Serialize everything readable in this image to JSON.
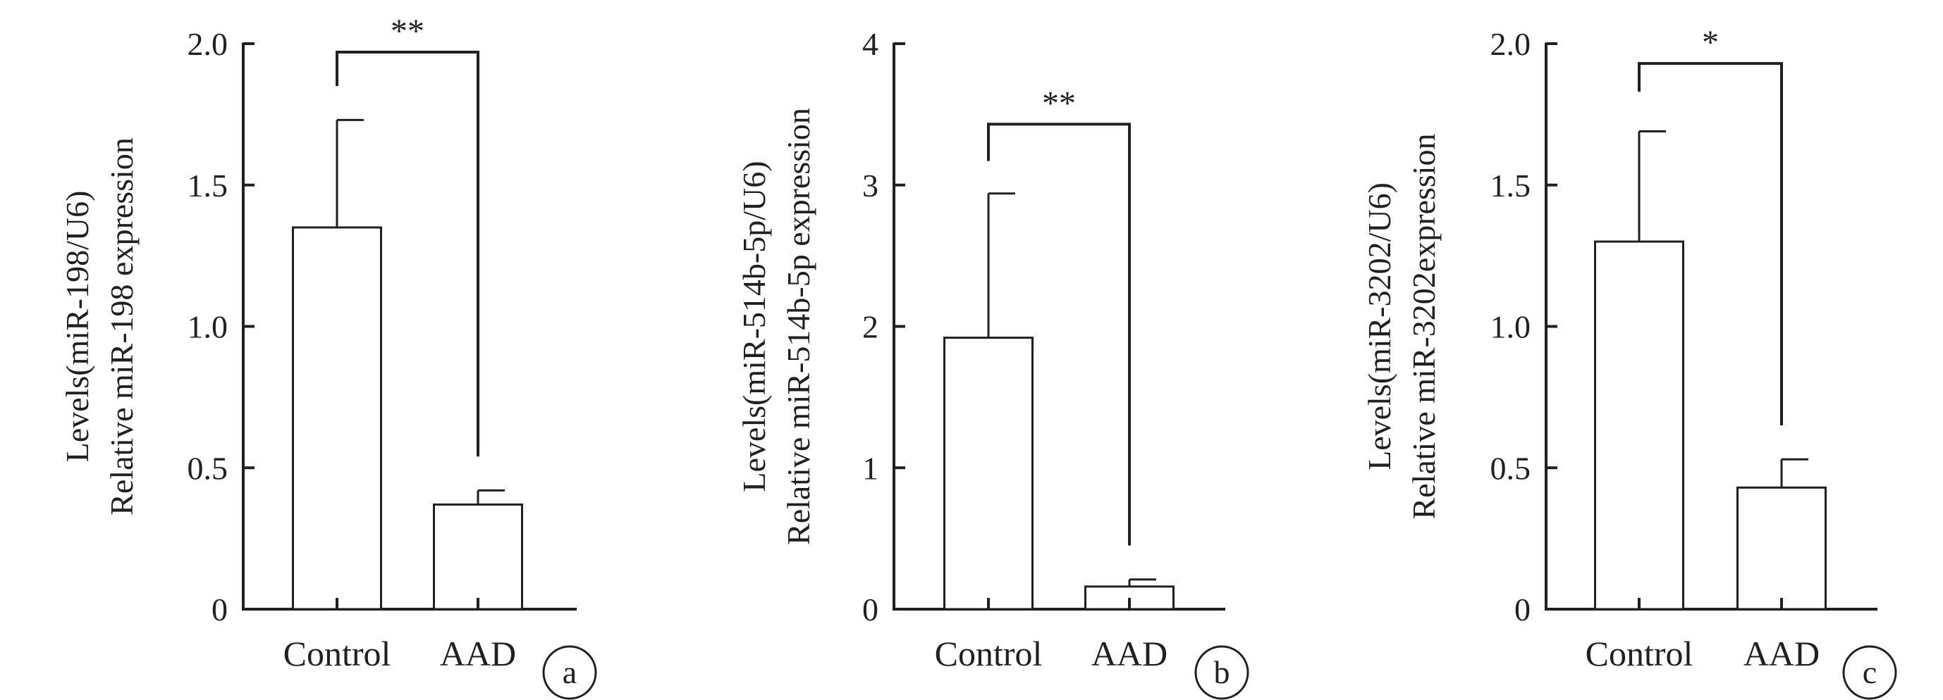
{
  "chart_data": [
    {
      "type": "bar",
      "panel_label": "a",
      "categories": [
        "Control",
        "AAD"
      ],
      "values": [
        1.35,
        0.37
      ],
      "errors": [
        0.38,
        0.05
      ],
      "ylim": [
        0,
        2.0
      ],
      "yticks": [
        "0",
        "0.5",
        "1.0",
        "1.5",
        "2.0"
      ],
      "ytick_values": [
        0,
        0.5,
        1.0,
        1.5,
        2.0
      ],
      "ylabel_lines": [
        "Levels(miR-198/U6)",
        "Relative miR-198 expression"
      ],
      "significance": "**",
      "bracket_y": 1.97,
      "bracket_left_y": 1.85,
      "bracket_right_y": 0.54,
      "grid": false
    },
    {
      "type": "bar",
      "panel_label": "b",
      "categories": [
        "Control",
        "AAD"
      ],
      "values": [
        1.92,
        0.16
      ],
      "errors": [
        1.02,
        0.05
      ],
      "ylim": [
        0,
        4
      ],
      "yticks": [
        "0",
        "1",
        "2",
        "3",
        "4"
      ],
      "ytick_values": [
        0,
        1,
        2,
        3,
        4
      ],
      "ylabel_lines": [
        "Levels(miR-514b-5p/U6)",
        "Relative miR-514b-5p expression"
      ],
      "significance": "**",
      "bracket_y": 3.43,
      "bracket_left_y": 3.17,
      "bracket_right_y": 0.45,
      "grid": false
    },
    {
      "type": "bar",
      "panel_label": "c",
      "categories": [
        "Control",
        "AAD"
      ],
      "values": [
        1.3,
        0.43
      ],
      "errors": [
        0.39,
        0.1
      ],
      "ylim": [
        0,
        2.0
      ],
      "yticks": [
        "0",
        "0.5",
        "1.0",
        "1.5",
        "2.0"
      ],
      "ytick_values": [
        0,
        0.5,
        1.0,
        1.5,
        2.0
      ],
      "ylabel_lines": [
        "Levels(miR-3202/U6)",
        "Relative miR-3202expression"
      ],
      "significance": "*",
      "bracket_y": 1.93,
      "bracket_left_y": 1.83,
      "bracket_right_y": 0.65,
      "grid": false
    }
  ]
}
